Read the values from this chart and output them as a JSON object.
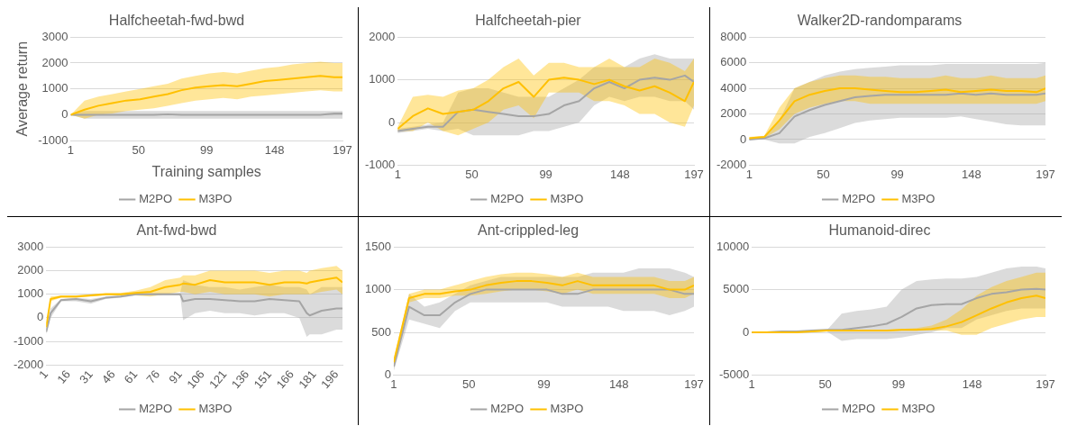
{
  "chart_data": [
    {
      "type": "line",
      "title": "Halfcheetah-fwd-bwd",
      "xlabel": "Training samples",
      "ylabel": "Average return",
      "x": [
        1,
        11,
        21,
        31,
        41,
        51,
        61,
        71,
        81,
        91,
        101,
        111,
        121,
        131,
        141,
        151,
        161,
        171,
        181,
        191,
        197
      ],
      "xlim": [
        1,
        197
      ],
      "xticks": [
        1,
        50,
        99,
        148,
        197
      ],
      "ylim": [
        -1000,
        3000
      ],
      "yticks": [
        -1000,
        0,
        1000,
        2000,
        3000
      ],
      "grid": "y",
      "legend": "bottom",
      "series": [
        {
          "name": "M2PO",
          "color": "#a5a5a5",
          "values": [
            0,
            0,
            0,
            0,
            0,
            0,
            0,
            20,
            0,
            0,
            0,
            0,
            0,
            0,
            0,
            0,
            0,
            0,
            0,
            50,
            50
          ],
          "lower": [
            0,
            -150,
            -150,
            -150,
            -150,
            -150,
            -150,
            -150,
            -150,
            -150,
            -150,
            -150,
            -150,
            -150,
            -150,
            -150,
            -150,
            -150,
            -150,
            -150,
            -150
          ],
          "upper": [
            0,
            150,
            150,
            150,
            150,
            150,
            150,
            150,
            150,
            150,
            150,
            150,
            150,
            150,
            150,
            150,
            150,
            150,
            150,
            150,
            150
          ]
        },
        {
          "name": "M3PO",
          "color": "#ffc000",
          "values": [
            0,
            200,
            350,
            450,
            550,
            600,
            700,
            800,
            950,
            1050,
            1100,
            1150,
            1100,
            1200,
            1300,
            1350,
            1400,
            1450,
            1500,
            1450,
            1450
          ],
          "lower": [
            0,
            -150,
            0,
            50,
            150,
            200,
            250,
            350,
            450,
            550,
            600,
            650,
            600,
            700,
            750,
            800,
            850,
            900,
            950,
            900,
            900
          ],
          "upper": [
            0,
            550,
            700,
            800,
            900,
            1000,
            1100,
            1200,
            1400,
            1500,
            1600,
            1650,
            1600,
            1700,
            1800,
            1850,
            1950,
            2000,
            2050,
            2000,
            2000
          ]
        }
      ]
    },
    {
      "type": "line",
      "title": "Halfcheetah-pier",
      "x": [
        1,
        11,
        21,
        31,
        41,
        51,
        61,
        71,
        81,
        91,
        101,
        111,
        121,
        131,
        141,
        151,
        161,
        171,
        181,
        191,
        197
      ],
      "xlim": [
        1,
        197
      ],
      "xticks": [
        1,
        50,
        99,
        148,
        197
      ],
      "ylim": [
        -1000,
        2000
      ],
      "yticks": [
        -1000,
        0,
        1000,
        2000
      ],
      "grid": "y",
      "legend": "bottom",
      "series": [
        {
          "name": "M2PO",
          "color": "#a5a5a5",
          "values": [
            -200,
            -150,
            -100,
            -100,
            250,
            300,
            250,
            200,
            150,
            150,
            200,
            400,
            500,
            800,
            950,
            800,
            1000,
            1050,
            1000,
            1100,
            950
          ],
          "lower": [
            -250,
            -200,
            -150,
            -200,
            -150,
            -300,
            -300,
            -300,
            -300,
            -200,
            -200,
            -100,
            0,
            400,
            600,
            500,
            600,
            600,
            500,
            500,
            300
          ],
          "upper": [
            -150,
            -100,
            -50,
            0,
            700,
            800,
            800,
            700,
            600,
            600,
            600,
            800,
            1000,
            1300,
            1300,
            1300,
            1500,
            1600,
            1500,
            1500,
            1500
          ]
        },
        {
          "name": "M3PO",
          "color": "#ffc000",
          "values": [
            -150,
            150,
            330,
            200,
            250,
            300,
            500,
            800,
            950,
            600,
            1000,
            1050,
            1000,
            900,
            1000,
            850,
            750,
            850,
            700,
            500,
            950
          ],
          "lower": [
            -200,
            -200,
            0,
            -200,
            -300,
            -150,
            0,
            300,
            400,
            100,
            700,
            700,
            700,
            500,
            500,
            400,
            200,
            200,
            0,
            -100,
            400
          ],
          "upper": [
            -100,
            600,
            650,
            600,
            750,
            800,
            1000,
            1300,
            1500,
            1100,
            1400,
            1400,
            1300,
            1300,
            1500,
            1300,
            1300,
            1500,
            1400,
            1200,
            1500
          ]
        }
      ]
    },
    {
      "type": "line",
      "title": "Walker2D-randomparams",
      "x": [
        1,
        11,
        21,
        31,
        41,
        51,
        61,
        71,
        81,
        91,
        101,
        111,
        121,
        131,
        141,
        151,
        161,
        171,
        181,
        191,
        197
      ],
      "xlim": [
        1,
        197
      ],
      "xticks": [
        1,
        50,
        99,
        148,
        197
      ],
      "ylim": [
        -2000,
        8000
      ],
      "yticks": [
        -2000,
        0,
        2000,
        4000,
        6000,
        8000
      ],
      "grid": "y",
      "legend": "bottom",
      "series": [
        {
          "name": "M2PO",
          "color": "#a5a5a5",
          "values": [
            0,
            100,
            500,
            1800,
            2300,
            2700,
            3000,
            3300,
            3400,
            3500,
            3500,
            3500,
            3500,
            3500,
            3600,
            3500,
            3600,
            3500,
            3500,
            3500,
            3600
          ],
          "lower": [
            0,
            0,
            -300,
            -300,
            200,
            500,
            900,
            1300,
            1500,
            1600,
            1700,
            1700,
            1700,
            1700,
            1800,
            1600,
            1400,
            1200,
            1100,
            1100,
            1100
          ],
          "upper": [
            100,
            200,
            1500,
            4000,
            4500,
            5000,
            5300,
            5500,
            5600,
            5700,
            5800,
            5800,
            5800,
            5900,
            5900,
            5900,
            5900,
            5900,
            5900,
            5900,
            6000
          ]
        },
        {
          "name": "M3PO",
          "color": "#ffc000",
          "values": [
            100,
            200,
            1500,
            3000,
            3500,
            3800,
            4000,
            4000,
            3900,
            3800,
            3700,
            3700,
            3800,
            3900,
            3700,
            3800,
            3900,
            3800,
            3800,
            3700,
            4000
          ],
          "lower": [
            0,
            100,
            800,
            2000,
            2500,
            2800,
            3000,
            3000,
            2800,
            2800,
            2800,
            2800,
            2800,
            2800,
            2800,
            2800,
            2800,
            2800,
            2800,
            2800,
            3000
          ],
          "upper": [
            200,
            300,
            2500,
            4000,
            4500,
            4800,
            5000,
            5000,
            4900,
            4900,
            4800,
            4800,
            4800,
            5000,
            4800,
            4800,
            5000,
            4800,
            4800,
            4800,
            5000
          ]
        }
      ]
    },
    {
      "type": "line",
      "title": "Ant-fwd-bwd",
      "x": [
        1,
        4,
        11,
        21,
        31,
        41,
        51,
        61,
        71,
        81,
        91,
        93,
        101,
        111,
        121,
        131,
        141,
        151,
        161,
        171,
        176,
        178,
        186,
        196,
        200
      ],
      "xlim": [
        1,
        200
      ],
      "xticks": [
        1,
        16,
        31,
        46,
        61,
        76,
        91,
        106,
        121,
        136,
        151,
        166,
        181,
        196
      ],
      "ylim": [
        -2000,
        3000
      ],
      "yticks": [
        -2000,
        -1000,
        0,
        1000,
        2000,
        3000
      ],
      "grid": "y",
      "legend": "bottom",
      "series": [
        {
          "name": "M2PO",
          "color": "#a5a5a5",
          "values": [
            -600,
            200,
            750,
            800,
            700,
            850,
            900,
            1000,
            1000,
            1000,
            1000,
            700,
            800,
            800,
            750,
            700,
            700,
            800,
            750,
            700,
            200,
            100,
            300,
            400,
            400
          ],
          "lower": [
            -700,
            0,
            700,
            700,
            600,
            800,
            850,
            950,
            950,
            950,
            950,
            -100,
            200,
            300,
            200,
            200,
            100,
            200,
            200,
            0,
            -800,
            -700,
            -700,
            -500,
            -500
          ],
          "upper": [
            -500,
            400,
            800,
            850,
            800,
            900,
            950,
            1050,
            1050,
            1050,
            1050,
            1600,
            1400,
            1300,
            1300,
            1200,
            1300,
            1400,
            1300,
            1300,
            1200,
            1000,
            1300,
            1300,
            1300
          ]
        },
        {
          "name": "M3PO",
          "color": "#ffc000",
          "values": [
            -400,
            800,
            900,
            900,
            950,
            1000,
            1000,
            1050,
            1100,
            1300,
            1400,
            1450,
            1400,
            1600,
            1500,
            1500,
            1500,
            1400,
            1500,
            1500,
            1450,
            1500,
            1600,
            1700,
            1500
          ],
          "lower": [
            -500,
            700,
            850,
            850,
            900,
            950,
            950,
            950,
            900,
            1000,
            1100,
            1100,
            1000,
            1100,
            1000,
            1000,
            1000,
            900,
            1000,
            1000,
            1000,
            1000,
            1100,
            1200,
            1000
          ],
          "upper": [
            -300,
            900,
            950,
            950,
            1000,
            1050,
            1050,
            1150,
            1300,
            1600,
            1700,
            1800,
            1800,
            2000,
            2000,
            2000,
            2000,
            1900,
            2000,
            2000,
            1900,
            2000,
            2100,
            2200,
            2000
          ]
        }
      ]
    },
    {
      "type": "line",
      "title": "Ant-crippled-leg",
      "x": [
        1,
        11,
        21,
        31,
        41,
        51,
        61,
        71,
        81,
        91,
        101,
        111,
        121,
        131,
        141,
        151,
        161,
        171,
        181,
        191,
        197
      ],
      "xlim": [
        1,
        197
      ],
      "xticks": [
        1,
        50,
        99,
        148,
        197
      ],
      "ylim": [
        0,
        1500
      ],
      "yticks": [
        0,
        500,
        1000,
        1500
      ],
      "grid": "y",
      "legend": "bottom",
      "series": [
        {
          "name": "M2PO",
          "color": "#a5a5a5",
          "values": [
            100,
            800,
            700,
            700,
            850,
            950,
            1000,
            1000,
            1000,
            1000,
            1000,
            950,
            950,
            1000,
            1000,
            1000,
            1000,
            1000,
            1000,
            950,
            950
          ],
          "lower": [
            50,
            650,
            600,
            550,
            750,
            850,
            850,
            850,
            850,
            850,
            850,
            800,
            800,
            800,
            800,
            750,
            750,
            750,
            700,
            750,
            800
          ],
          "upper": [
            150,
            950,
            800,
            850,
            950,
            1050,
            1100,
            1150,
            1150,
            1150,
            1150,
            1150,
            1150,
            1200,
            1200,
            1200,
            1250,
            1250,
            1250,
            1200,
            1150
          ]
        },
        {
          "name": "M3PO",
          "color": "#ffc000",
          "values": [
            150,
            900,
            950,
            950,
            980,
            1000,
            1050,
            1080,
            1100,
            1100,
            1080,
            1050,
            1100,
            1050,
            1050,
            1050,
            1050,
            1050,
            1000,
            1000,
            1050
          ],
          "lower": [
            100,
            850,
            900,
            900,
            930,
            930,
            950,
            980,
            1000,
            1000,
            980,
            950,
            1000,
            950,
            950,
            950,
            950,
            950,
            900,
            900,
            950
          ],
          "upper": [
            200,
            950,
            1000,
            1000,
            1050,
            1100,
            1150,
            1180,
            1200,
            1200,
            1180,
            1150,
            1200,
            1150,
            1150,
            1150,
            1150,
            1150,
            1100,
            1100,
            1150
          ]
        }
      ]
    },
    {
      "type": "line",
      "title": "Humanoid-direc",
      "x": [
        1,
        11,
        21,
        31,
        41,
        51,
        61,
        71,
        81,
        91,
        101,
        111,
        121,
        131,
        141,
        151,
        161,
        171,
        181,
        191,
        197
      ],
      "xlim": [
        1,
        197
      ],
      "xticks": [
        1,
        50,
        99,
        148,
        197
      ],
      "ylim": [
        -5000,
        10000
      ],
      "yticks": [
        -5000,
        0,
        5000,
        10000
      ],
      "grid": "y",
      "legend": "bottom",
      "series": [
        {
          "name": "M2PO",
          "color": "#a5a5a5",
          "values": [
            0,
            0,
            100,
            100,
            200,
            300,
            300,
            500,
            700,
            1000,
            1800,
            2800,
            3200,
            3300,
            3300,
            4000,
            4500,
            4700,
            5000,
            5100,
            5000
          ],
          "lower": [
            0,
            0,
            0,
            0,
            100,
            100,
            -1000,
            -800,
            -800,
            -800,
            -600,
            -300,
            0,
            500,
            500,
            1500,
            2000,
            2500,
            2800,
            2800,
            2800
          ],
          "upper": [
            50,
            100,
            150,
            150,
            200,
            250,
            2200,
            2500,
            2700,
            3000,
            5000,
            6000,
            6200,
            6300,
            6300,
            6500,
            7000,
            7500,
            7700,
            7700,
            7500
          ]
        },
        {
          "name": "M3PO",
          "color": "#ffc000",
          "values": [
            0,
            0,
            0,
            0,
            100,
            200,
            200,
            200,
            200,
            200,
            300,
            300,
            400,
            700,
            1200,
            2000,
            2800,
            3500,
            4000,
            4300,
            4000
          ],
          "lower": [
            0,
            0,
            0,
            0,
            0,
            100,
            100,
            100,
            100,
            100,
            200,
            200,
            200,
            200,
            -300,
            -300,
            500,
            1000,
            1500,
            1800,
            1800
          ],
          "upper": [
            0,
            100,
            100,
            100,
            200,
            300,
            300,
            300,
            300,
            300,
            400,
            500,
            800,
            1500,
            2700,
            4300,
            5300,
            6000,
            6500,
            7000,
            7000
          ]
        }
      ]
    }
  ]
}
